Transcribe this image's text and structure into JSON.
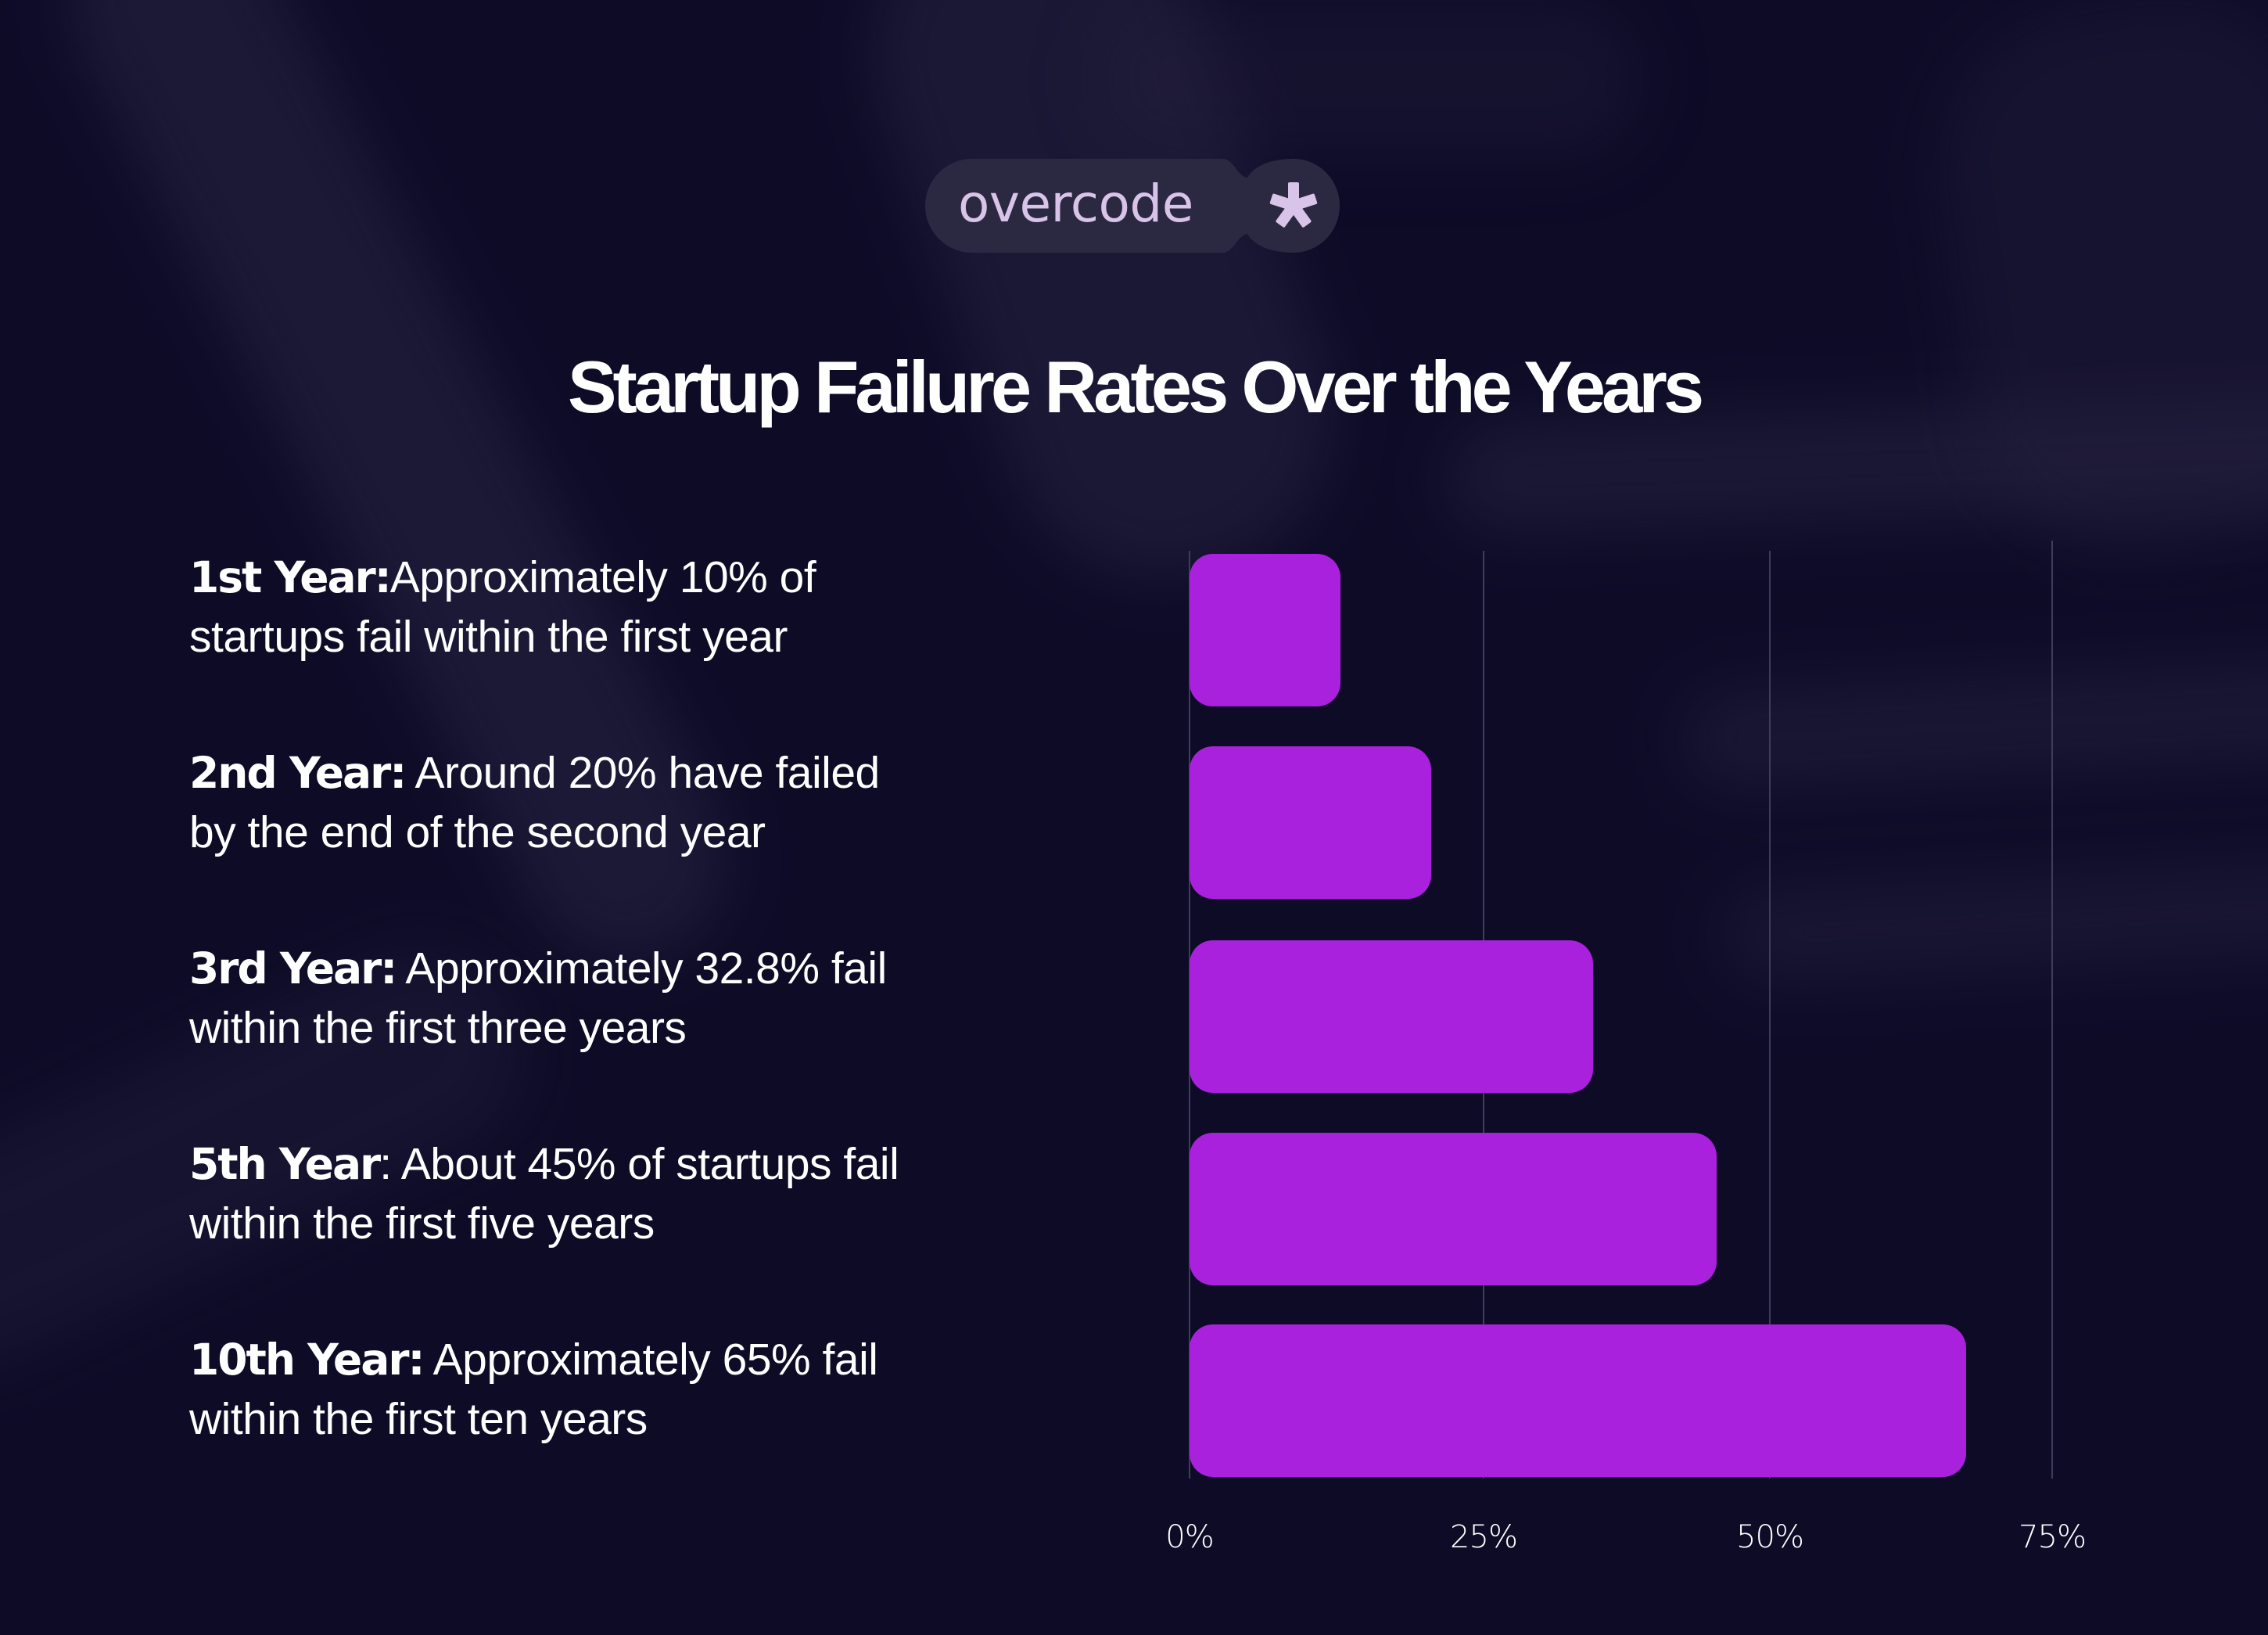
{
  "brand": {
    "name": "overcode",
    "icon": "asterisk-icon",
    "pill_color": "#2b2841",
    "text_color": "#d8c4e9"
  },
  "header": {
    "title": "Startup Failure Rates Over the Years"
  },
  "facts": [
    {
      "label": "1st Year:",
      "text": "Approximately 10% of",
      "text2": "startups fail within the first year"
    },
    {
      "label": "2nd Year:",
      "text": " Around 20% have failed",
      "text2": "by the end of the second year"
    },
    {
      "label": "3rd Year:",
      "text": " Approximately 32.8% fail",
      "text2": "within the first three years"
    },
    {
      "label": "5th Year",
      "text": ": About 45% of startups fail",
      "text2": "within the first five years"
    },
    {
      "label": "10th Year:",
      "text": " Approximately 65% fail",
      "text2": "within the first ten years"
    }
  ],
  "colors": {
    "background": "#0d0b26",
    "bar": "#a921dd",
    "gridline": "#3f3c5c",
    "text": "#ffffff"
  },
  "chart_data": {
    "type": "bar",
    "orientation": "horizontal",
    "title": "Startup Failure Rates Over the Years",
    "categories": [
      "1st Year",
      "2nd Year",
      "3rd Year",
      "5th Year",
      "10th Year"
    ],
    "values": [
      10,
      20,
      32.8,
      45,
      65
    ],
    "rendered_values_estimate": [
      13.1,
      21.0,
      35.1,
      45.8,
      67.5
    ],
    "xlabel": "",
    "ylabel": "",
    "xlim": [
      0,
      75
    ],
    "x_ticks": [
      "0%",
      "25%",
      "50%",
      "75%"
    ],
    "x_tick_values": [
      0,
      25,
      50,
      75
    ],
    "grid": true,
    "legend": null,
    "unit": "%"
  }
}
